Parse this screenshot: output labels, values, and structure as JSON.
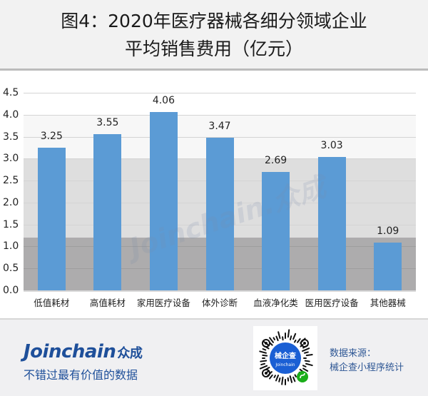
{
  "header": {
    "title_line1": "图4：2020年医疗器械各细分领域企业",
    "title_line2": "平均销售费用（亿元）"
  },
  "chart_data": {
    "type": "bar",
    "title": "图4：2020年医疗器械各细分领域企业平均销售费用（亿元）",
    "xlabel": "",
    "ylabel": "",
    "ylim": [
      0,
      4.5
    ],
    "yticks": [
      "0.0",
      "0.5",
      "1.0",
      "1.5",
      "2.0",
      "2.5",
      "3.0",
      "3.5",
      "4.0",
      "4.5"
    ],
    "grid": true,
    "legend": null,
    "categories": [
      "低值耗材",
      "高值耗材",
      "家用医疗设备",
      "体外诊断",
      "血液净化类",
      "医用医疗设备",
      "其他器械"
    ],
    "values": [
      3.25,
      3.55,
      4.06,
      3.47,
      2.69,
      3.03,
      1.09
    ],
    "value_labels": [
      "3.25",
      "3.55",
      "4.06",
      "3.47",
      "2.69",
      "3.03",
      "1.09"
    ],
    "bar_color": "#5b9bd5",
    "background_bands": [
      {
        "from": 0,
        "to": 1.2,
        "color": "#adacad"
      },
      {
        "from": 1.2,
        "to": 3.0,
        "color": "#dedede"
      },
      {
        "from": 3.0,
        "to": 4.0,
        "color": "#f7f7f7"
      },
      {
        "from": 4.0,
        "to": 4.5,
        "color": "#ffffff"
      }
    ]
  },
  "watermark": {
    "text": "Joinchain.众成"
  },
  "footer": {
    "brand_prefix": "J",
    "brand_i": "o",
    "brand_name": "Joinchain",
    "brand_cn": "众成",
    "slogan": "不错过最有价值的数据",
    "qr_center_title": "械企查",
    "qr_center_sub": "Joinchain",
    "source_line1": "数据来源：",
    "source_line2": "械企查小程序统计"
  },
  "colors": {
    "brand_blue": "#1e4f9a",
    "bar_blue": "#5b9bd5"
  }
}
